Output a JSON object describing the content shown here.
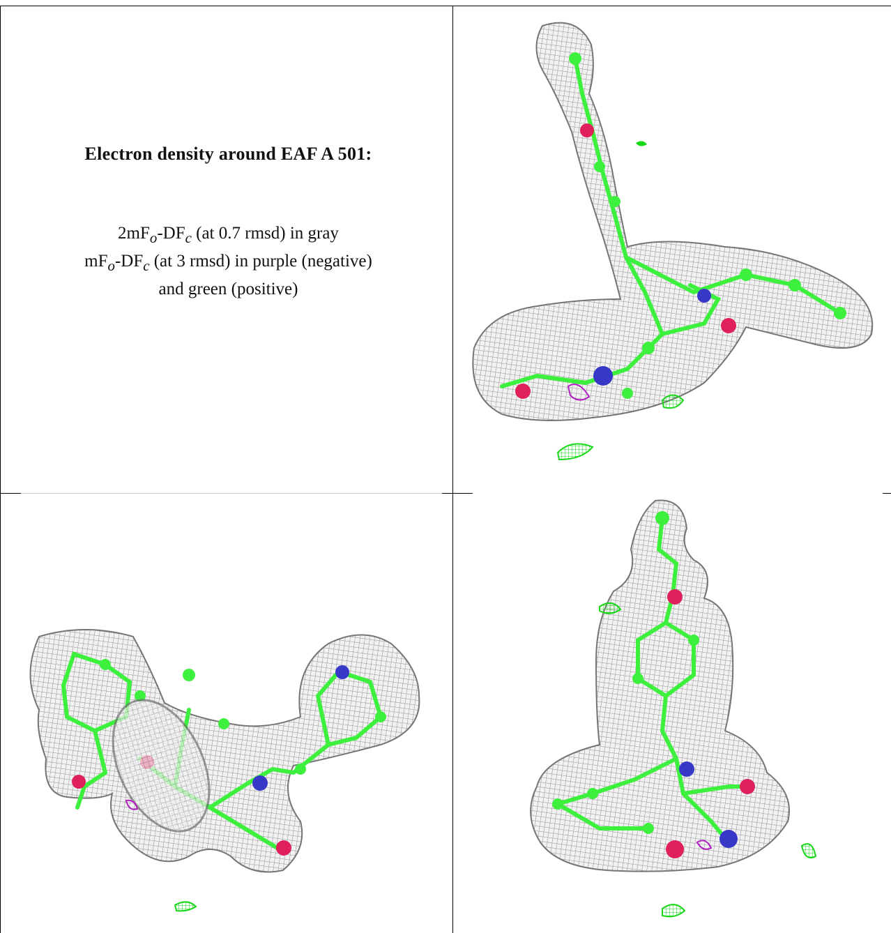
{
  "caption": {
    "title": "Electron density around EAF A 501:",
    "line1": {
      "a": "2mF",
      "sub1": "o",
      "b": "-DF",
      "sub2": "c",
      "c": " (at 0.7 rmsd) in gray"
    },
    "line2": {
      "a": "mF",
      "sub1": "o",
      "b": "-DF",
      "sub2": "c",
      "c": " (at 3 rmsd) in purple (negative)"
    },
    "line3": "and green (positive)"
  },
  "colors": {
    "mesh_gray": "#8c8c8c",
    "carbon_green": "#3ef03e",
    "oxygen_red": "#e0205a",
    "nitrogen_blue": "#3838c8",
    "negative_purple": "#b020c0",
    "positive_green": "#20e020"
  }
}
